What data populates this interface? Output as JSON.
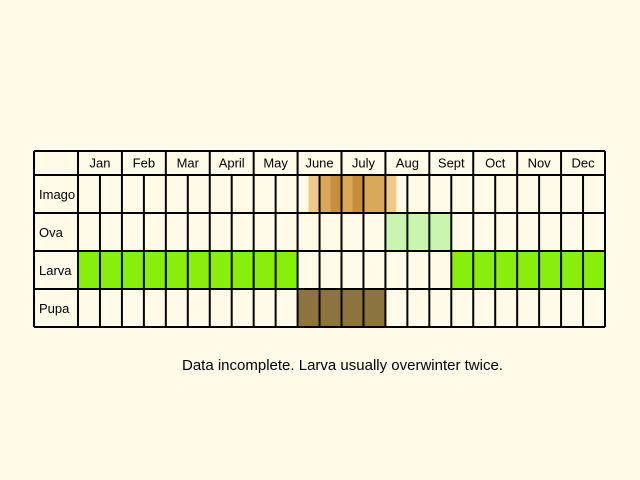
{
  "chart_data": {
    "type": "table",
    "months": [
      "Jan",
      "Feb",
      "Mar",
      "April",
      "May",
      "June",
      "July",
      "Aug",
      "Sept",
      "Oct",
      "Nov",
      "Dec"
    ],
    "periods_per_month": 2,
    "stages": [
      {
        "label": "Imago",
        "bands": [
          {
            "start": 10.5,
            "end": 14.5,
            "color": "#f0c88a"
          },
          {
            "start": 11,
            "end": 14,
            "color": "#d9a85a"
          },
          {
            "start": 11.5,
            "end": 12,
            "color": "#c78e3c"
          },
          {
            "start": 12.5,
            "end": 13,
            "color": "#c78e3c"
          }
        ]
      },
      {
        "label": "Ova",
        "bands": [
          {
            "start": 14,
            "end": 17,
            "color": "#c8f5b0"
          }
        ]
      },
      {
        "label": "Larva",
        "bands": [
          {
            "start": 0,
            "end": 10,
            "color": "#88ee0c"
          },
          {
            "start": 17,
            "end": 24,
            "color": "#88ee0c"
          }
        ]
      },
      {
        "label": "Pupa",
        "bands": [
          {
            "start": 10,
            "end": 14,
            "color": "#8c7440"
          }
        ]
      }
    ]
  },
  "note": "Data incomplete. Larva usually overwinter twice."
}
